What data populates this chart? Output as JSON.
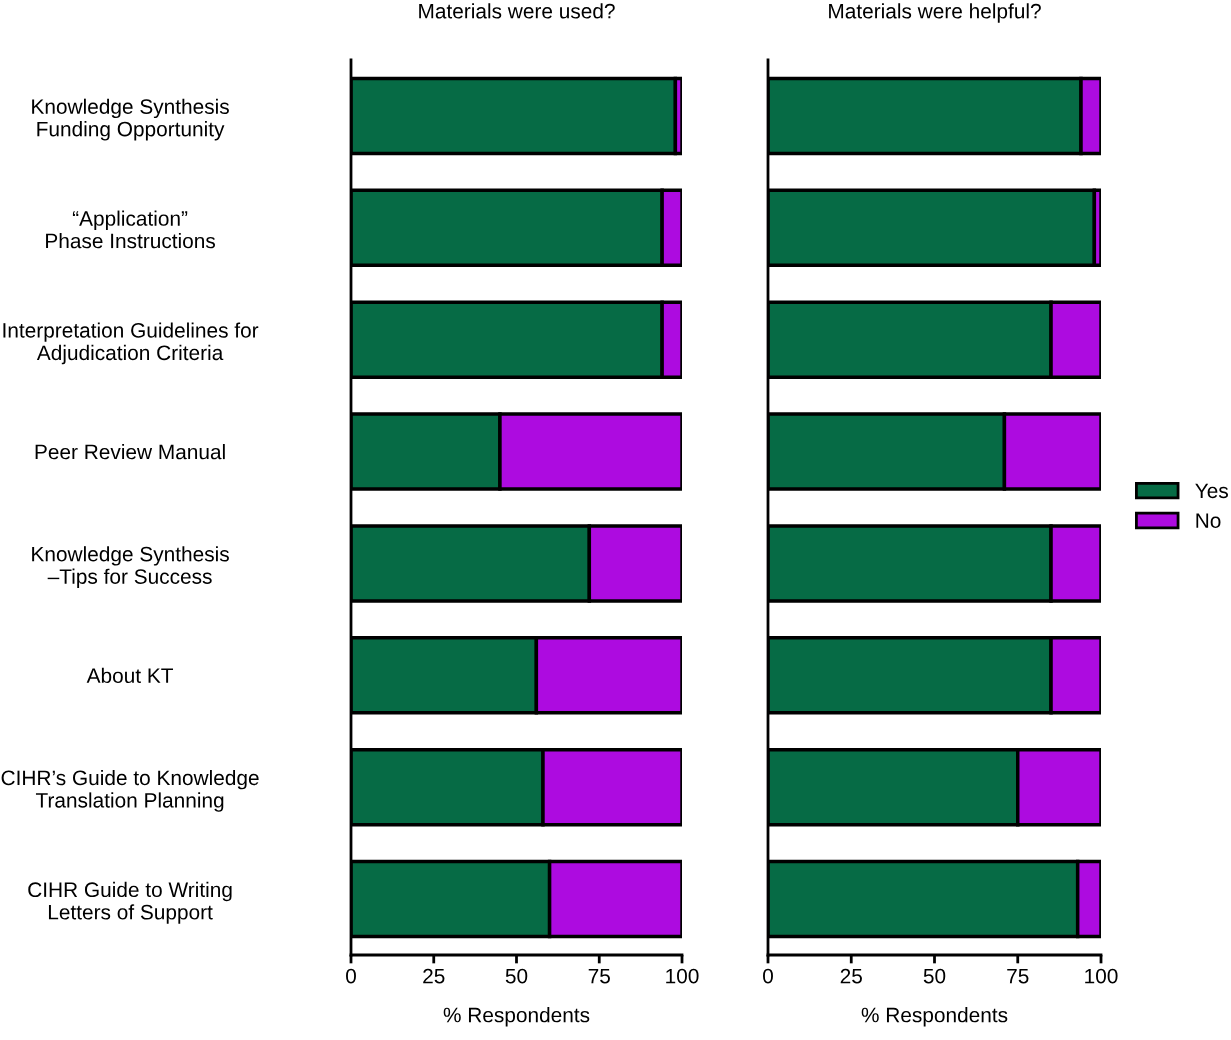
{
  "chart_data": [
    {
      "type": "bar",
      "orientation": "horizontal",
      "stacked": true,
      "title": "Materials were used?",
      "xlabel": "% Respondents",
      "categories": [
        "Knowledge Synthesis\nFunding Opportunity",
        "“Application”\nPhase Instructions",
        "Interpretation Guidelines for\nAdjudication Criteria",
        "Peer Review Manual",
        "Knowledge Synthesis\n–Tips for Success",
        "About KT",
        "CIHR’s Guide to Knowledge\nTranslation Planning",
        "CIHR Guide to Writing\nLetters of Support"
      ],
      "series": [
        {
          "color": "#066b45",
          "values": [
            98,
            94,
            94,
            45,
            72,
            56,
            58,
            60
          ]
        },
        {
          "color": "#ad0be0",
          "values": [
            2,
            6,
            6,
            55,
            28,
            44,
            42,
            40
          ]
        }
      ],
      "xlim": [
        0,
        100
      ],
      "xticks": [
        0,
        25,
        50,
        75,
        100
      ],
      "grid": false
    },
    {
      "type": "bar",
      "orientation": "horizontal",
      "stacked": true,
      "title": "Materials were helpful?",
      "xlabel": "% Respondents",
      "categories": [
        null,
        null,
        null,
        null,
        null,
        null,
        null,
        null
      ],
      "series": [
        {
          "name": "Yes",
          "color": "#066b45",
          "values": [
            94,
            98,
            85,
            71,
            85,
            85,
            75,
            93
          ]
        },
        {
          "name": "No",
          "color": "#ad0be0",
          "values": [
            6,
            2,
            15,
            29,
            15,
            15,
            25,
            7
          ]
        }
      ],
      "xlim": [
        0,
        100
      ],
      "xticks": [
        0,
        25,
        50,
        75,
        100
      ],
      "grid": false,
      "legend": "right",
      "tick_labels": "x"
    }
  ]
}
